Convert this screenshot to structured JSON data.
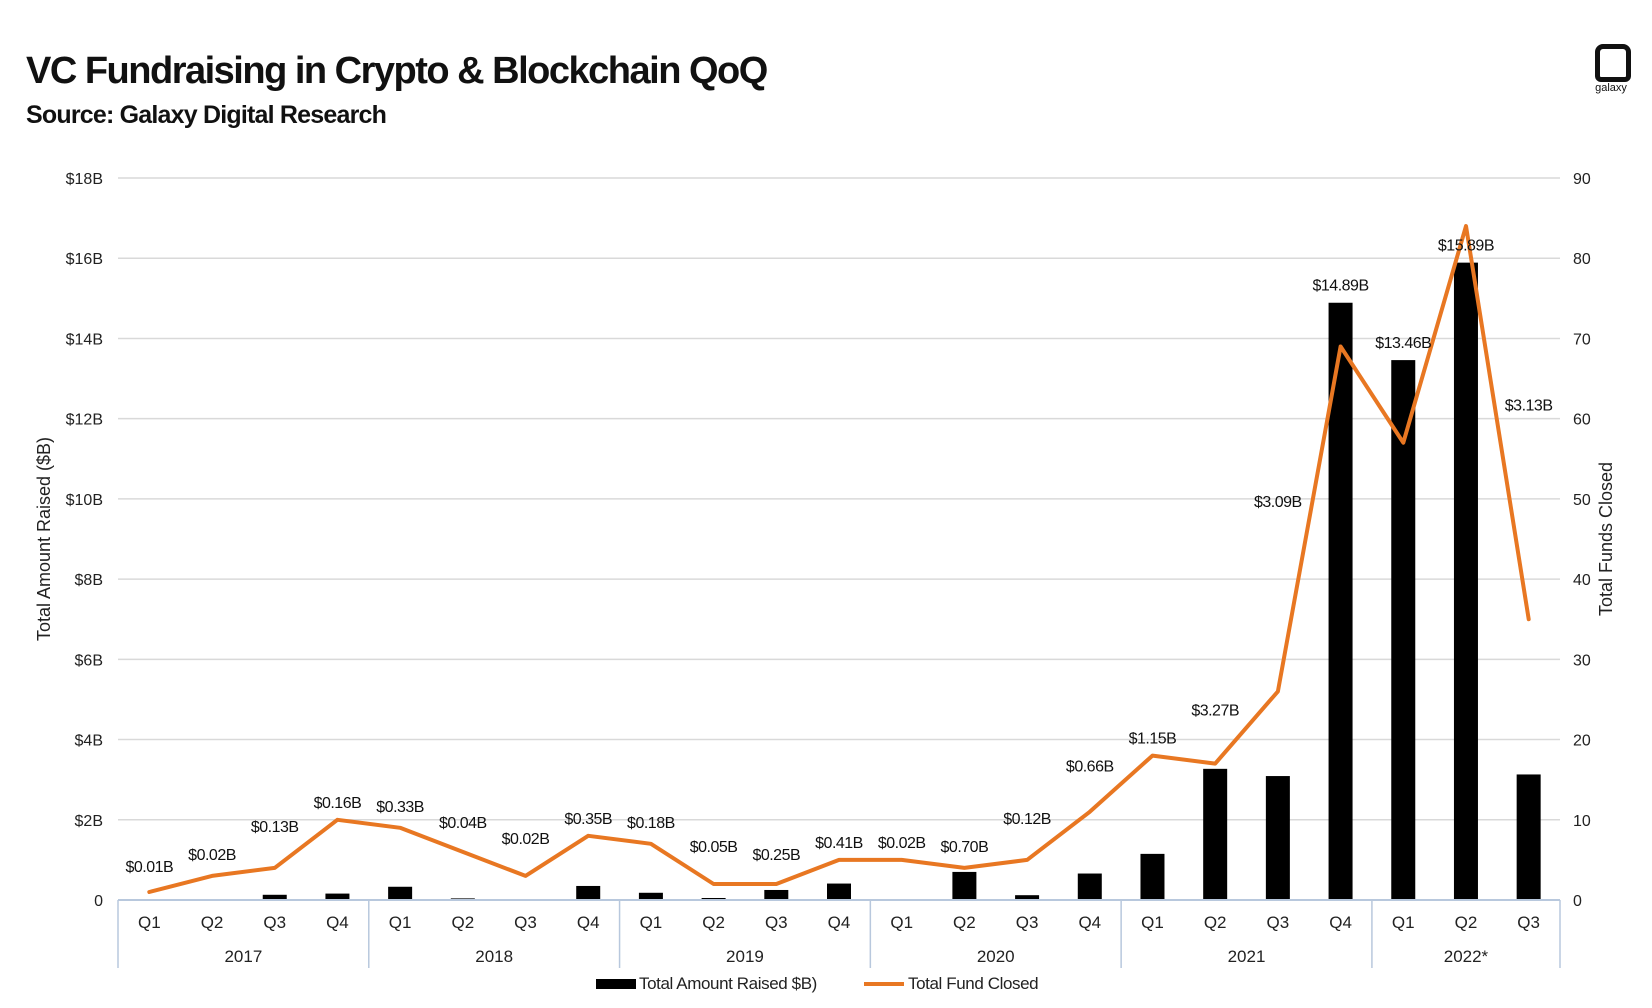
{
  "header": {
    "title": "VC Fundraising in Crypto & Blockchain QoQ",
    "subtitle": "Source: Galaxy Digital Research",
    "logo_text": "galaxy",
    "logo_icon": "galaxy-logo-icon"
  },
  "colors": {
    "bar": "#000000",
    "line": "#E87722",
    "grid": "#d9d9d9",
    "axis": "#b8c8dd"
  },
  "chart_data": {
    "type": "bar",
    "x": [
      "Q1",
      "Q2",
      "Q3",
      "Q4",
      "Q1",
      "Q2",
      "Q3",
      "Q4",
      "Q1",
      "Q2",
      "Q3",
      "Q4",
      "Q1",
      "Q2",
      "Q3",
      "Q4",
      "Q1",
      "Q2",
      "Q3",
      "Q4",
      "Q1",
      "Q2",
      "Q3"
    ],
    "year_groups": [
      {
        "label": "2017",
        "count": 4
      },
      {
        "label": "2018",
        "count": 4
      },
      {
        "label": "2019",
        "count": 4
      },
      {
        "label": "2020",
        "count": 4
      },
      {
        "label": "2021",
        "count": 4
      },
      {
        "label": "2022*",
        "count": 3
      }
    ],
    "series": [
      {
        "name": "Total Amount Raised $B)",
        "type": "bar",
        "axis": "left",
        "values": [
          0.01,
          0.02,
          0.13,
          0.16,
          0.33,
          0.04,
          0.02,
          0.35,
          0.18,
          0.05,
          0.25,
          0.41,
          0.02,
          0.7,
          0.12,
          0.66,
          1.15,
          3.27,
          3.09,
          14.89,
          13.46,
          15.89,
          3.13
        ],
        "labels": [
          "$0.01B",
          "$0.02B",
          "$0.13B",
          "$0.16B",
          "$0.33B",
          "$0.04B",
          "$0.02B",
          "$0.35B",
          "$0.18B",
          "$0.05B",
          "$0.25B",
          "$0.41B",
          "$0.02B",
          "$0.70B",
          "$0.12B",
          "$0.66B",
          "$1.15B",
          "$3.27B",
          "$3.09B",
          "$14.89B",
          "$13.46B",
          "$15.89B",
          "$3.13B"
        ]
      },
      {
        "name": "Total Fund Closed",
        "type": "line",
        "axis": "right",
        "values": [
          1,
          3,
          4,
          10,
          9,
          6,
          3,
          8,
          7,
          2,
          2,
          5,
          5,
          4,
          5,
          11,
          18,
          17,
          26,
          69,
          57,
          84,
          35
        ]
      }
    ],
    "ylabel": "Total Amount Raised ($B)",
    "ylabel_right": "Total Funds Closed",
    "ylim": [
      0,
      18
    ],
    "ylim_right": [
      0,
      90
    ],
    "yticks": [
      {
        "value": 0,
        "label": "0"
      },
      {
        "value": 2,
        "label": "$2B"
      },
      {
        "value": 4,
        "label": "$4B"
      },
      {
        "value": 6,
        "label": "$6B"
      },
      {
        "value": 8,
        "label": "$8B"
      },
      {
        "value": 10,
        "label": "$10B"
      },
      {
        "value": 12,
        "label": "$12B"
      },
      {
        "value": 14,
        "label": "$14B"
      },
      {
        "value": 16,
        "label": "$16B"
      },
      {
        "value": 18,
        "label": "$18B"
      }
    ],
    "yticks_right": [
      {
        "value": 0,
        "label": "0"
      },
      {
        "value": 10,
        "label": "10"
      },
      {
        "value": 20,
        "label": "20"
      },
      {
        "value": 30,
        "label": "30"
      },
      {
        "value": 40,
        "label": "40"
      },
      {
        "value": 50,
        "label": "50"
      },
      {
        "value": 60,
        "label": "60"
      },
      {
        "value": 70,
        "label": "70"
      },
      {
        "value": 80,
        "label": "80"
      },
      {
        "value": 90,
        "label": "90"
      }
    ],
    "grid": true,
    "legend": "bottom-center"
  }
}
